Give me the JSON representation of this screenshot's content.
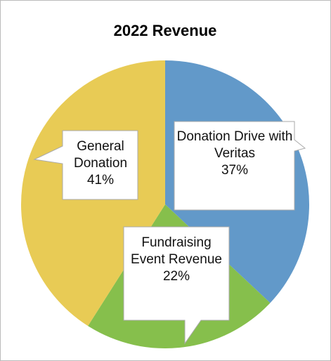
{
  "chart_data": {
    "type": "pie",
    "title": "2022 Revenue",
    "categories": [
      "Donation Drive with Veritas",
      "Fundraising Event Revenue",
      "General Donation"
    ],
    "values": [
      37,
      22,
      41
    ],
    "value_labels": [
      "37%",
      "22%",
      "41%"
    ],
    "colors": [
      "#6299c9",
      "#86bf4c",
      "#e8cb55"
    ]
  }
}
